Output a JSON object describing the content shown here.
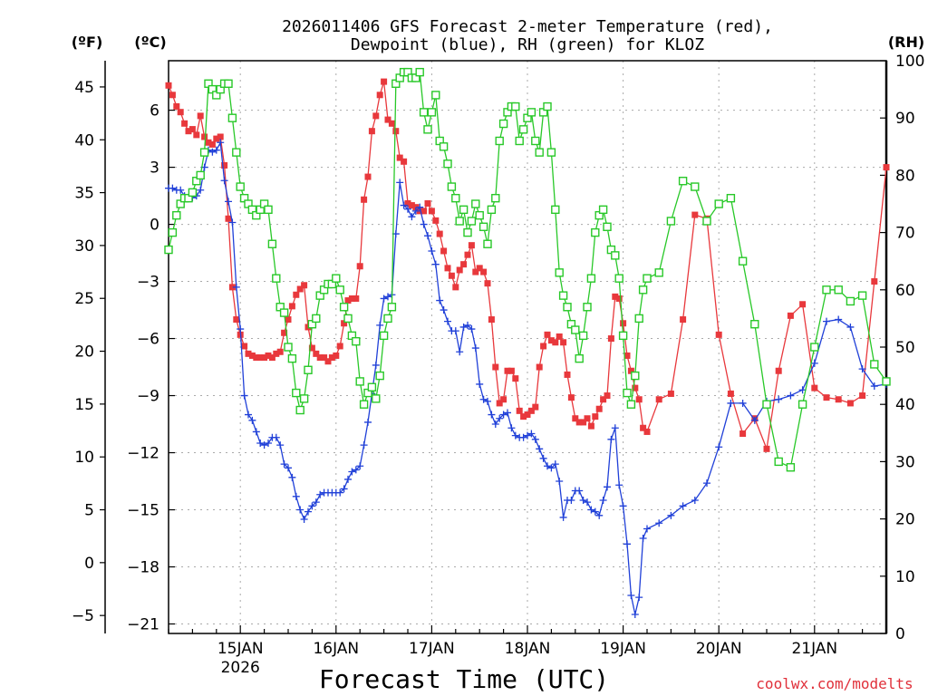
{
  "chart_data": {
    "type": "line",
    "title_line1": "2026011406 GFS Forecast 2-meter Temperature (red),",
    "title_line2": "Dewpoint (blue), RH (green) for KLOZ",
    "xlabel": "Forecast Time (UTC)",
    "credit": "coolwx.com/modelts",
    "unit_left_f": "(ºF)",
    "unit_left_c": "(ºC)",
    "unit_right": "(RH)",
    "x_range_hours": [
      0,
      180
    ],
    "x_ticks": [
      {
        "label": "15JAN",
        "hour": 18,
        "sub": "2026"
      },
      {
        "label": "16JAN",
        "hour": 42,
        "sub": ""
      },
      {
        "label": "17JAN",
        "hour": 66,
        "sub": ""
      },
      {
        "label": "18JAN",
        "hour": 90,
        "sub": ""
      },
      {
        "label": "19JAN",
        "hour": 114,
        "sub": ""
      },
      {
        "label": "20JAN",
        "hour": 138,
        "sub": ""
      },
      {
        "label": "21JAN",
        "hour": 162,
        "sub": ""
      }
    ],
    "yc_range": [
      -21.5,
      8.6
    ],
    "yc_ticks": [
      -21,
      -18,
      -15,
      -12,
      -9,
      -6,
      -3,
      0,
      3,
      6
    ],
    "yc_tick_labels": [
      "−21",
      "−18",
      "−15",
      "−12",
      "−9",
      "−6",
      "−3",
      "0",
      "3",
      "6"
    ],
    "yf_ticks": [
      -5,
      0,
      5,
      10,
      15,
      20,
      25,
      30,
      35,
      40,
      45
    ],
    "yf_tick_labels": [
      "−5",
      "0",
      "5",
      "10",
      "15",
      "20",
      "25",
      "30",
      "35",
      "40",
      "45"
    ],
    "rh_range": [
      0,
      100
    ],
    "rh_ticks": [
      0,
      10,
      20,
      30,
      40,
      50,
      60,
      70,
      80,
      90,
      100
    ],
    "rh_tick_labels": [
      "0",
      "10",
      "20",
      "30",
      "40",
      "50",
      "60",
      "70",
      "80",
      "90",
      "100"
    ],
    "series": [
      {
        "name": "Temperature",
        "axis": "celsius",
        "color": "#e8383c",
        "marker": "filled-square",
        "hours": [
          0,
          1,
          2,
          3,
          4,
          5,
          6,
          7,
          8,
          9,
          10,
          11,
          12,
          13,
          14,
          15,
          16,
          17,
          18,
          19,
          20,
          21,
          22,
          23,
          24,
          25,
          26,
          27,
          28,
          29,
          30,
          31,
          32,
          33,
          34,
          35,
          36,
          37,
          38,
          39,
          40,
          41,
          42,
          43,
          44,
          45,
          46,
          47,
          48,
          49,
          50,
          51,
          52,
          53,
          54,
          55,
          56,
          57,
          58,
          59,
          60,
          61,
          62,
          63,
          64,
          65,
          66,
          67,
          68,
          69,
          70,
          71,
          72,
          73,
          74,
          75,
          76,
          77,
          78,
          79,
          80,
          81,
          82,
          83,
          84,
          85,
          86,
          87,
          88,
          89,
          90,
          91,
          92,
          93,
          94,
          95,
          96,
          97,
          98,
          99,
          100,
          101,
          102,
          103,
          104,
          105,
          106,
          107,
          108,
          109,
          110,
          111,
          112,
          113,
          114,
          115,
          116,
          117,
          118,
          119,
          120,
          123,
          126,
          129,
          132,
          135,
          138,
          141,
          144,
          147,
          150,
          153,
          156,
          159,
          162,
          165,
          168,
          171,
          174,
          177,
          180
        ],
        "values": [
          7.3,
          6.8,
          6.2,
          5.9,
          5.3,
          4.9,
          5.0,
          4.7,
          5.7,
          4.6,
          4.3,
          4.2,
          4.5,
          4.6,
          3.1,
          0.3,
          -3.3,
          -5.0,
          -5.8,
          -6.4,
          -6.8,
          -6.9,
          -7.0,
          -7.0,
          -7.0,
          -6.9,
          -7.0,
          -6.8,
          -6.7,
          -5.7,
          -5.0,
          -4.3,
          -3.7,
          -3.4,
          -3.2,
          -5.4,
          -6.5,
          -6.8,
          -7.0,
          -7.0,
          -7.2,
          -7.0,
          -6.9,
          -6.4,
          -5.2,
          -4.0,
          -3.9,
          -3.9,
          -2.2,
          1.3,
          2.5,
          4.9,
          5.7,
          6.8,
          7.5,
          5.5,
          5.3,
          4.9,
          3.5,
          3.3,
          1.1,
          1.0,
          0.9,
          0.7,
          0.7,
          1.1,
          0.7,
          0.2,
          -0.5,
          -1.4,
          -2.3,
          -2.7,
          -3.3,
          -2.4,
          -2.1,
          -1.6,
          -1.1,
          -2.5,
          -2.3,
          -2.5,
          -3.1,
          -5.0,
          -7.5,
          -9.4,
          -9.2,
          -7.7,
          -7.7,
          -8.1,
          -9.8,
          -10.1,
          -10.0,
          -9.8,
          -9.6,
          -7.5,
          -6.4,
          -5.8,
          -6.1,
          -6.2,
          -5.9,
          -6.2,
          -7.9,
          -9.1,
          -10.2,
          -10.4,
          -10.4,
          -10.2,
          -10.6,
          -10.1,
          -9.7,
          -9.2,
          -9.0,
          -6.0,
          -3.8,
          -3.9,
          -5.2,
          -6.9,
          -7.7,
          -8.6,
          -9.2,
          -10.7,
          -10.9,
          -9.2,
          -8.9,
          -5.0,
          0.5,
          0.3,
          -5.8,
          -8.9,
          -11.0,
          -10.2,
          -11.8,
          -7.7,
          -4.8,
          -4.2,
          -8.6,
          -9.1,
          -9.2,
          -9.4,
          -9.0,
          -3.0,
          3.0
        ]
      },
      {
        "name": "Dewpoint",
        "axis": "celsius",
        "color": "#2040d8",
        "marker": "plus",
        "hours": [
          0,
          1,
          2,
          3,
          4,
          5,
          6,
          7,
          8,
          9,
          10,
          11,
          12,
          13,
          14,
          15,
          16,
          17,
          18,
          19,
          20,
          21,
          22,
          23,
          24,
          25,
          26,
          27,
          28,
          29,
          30,
          31,
          32,
          33,
          34,
          35,
          36,
          37,
          38,
          39,
          40,
          41,
          42,
          43,
          44,
          45,
          46,
          47,
          48,
          49,
          50,
          51,
          52,
          53,
          54,
          55,
          56,
          57,
          58,
          59,
          60,
          61,
          62,
          63,
          64,
          65,
          66,
          67,
          68,
          69,
          70,
          71,
          72,
          73,
          74,
          75,
          76,
          77,
          78,
          79,
          80,
          81,
          82,
          83,
          84,
          85,
          86,
          87,
          88,
          89,
          90,
          91,
          92,
          93,
          94,
          95,
          96,
          97,
          98,
          99,
          100,
          101,
          102,
          103,
          104,
          105,
          106,
          107,
          108,
          109,
          110,
          111,
          112,
          113,
          114,
          115,
          116,
          117,
          118,
          119,
          120,
          123,
          126,
          129,
          132,
          135,
          138,
          141,
          144,
          147,
          150,
          153,
          156,
          159,
          162,
          165,
          168,
          171,
          174,
          177,
          180
        ],
        "values": [
          1.9,
          1.9,
          1.8,
          1.8,
          1.5,
          1.4,
          1.4,
          1.5,
          1.8,
          3.0,
          3.9,
          3.8,
          3.9,
          4.3,
          2.3,
          1.2,
          0.1,
          -3.3,
          -5.5,
          -9.0,
          -10.0,
          -10.3,
          -10.9,
          -11.5,
          -11.6,
          -11.5,
          -11.2,
          -11.2,
          -11.6,
          -12.6,
          -12.8,
          -13.3,
          -14.3,
          -15.0,
          -15.5,
          -15.1,
          -14.8,
          -14.6,
          -14.2,
          -14.1,
          -14.1,
          -14.1,
          -14.1,
          -14.1,
          -13.9,
          -13.4,
          -13.0,
          -12.9,
          -12.7,
          -11.6,
          -10.4,
          -8.9,
          -7.4,
          -5.3,
          -3.9,
          -3.8,
          -3.7,
          -0.5,
          2.2,
          1.0,
          0.8,
          0.4,
          0.7,
          0.9,
          0.0,
          -0.6,
          -1.4,
          -2.1,
          -4.0,
          -4.5,
          -5.1,
          -5.6,
          -5.6,
          -6.7,
          -5.4,
          -5.3,
          -5.5,
          -6.5,
          -8.4,
          -9.2,
          -9.3,
          -10.0,
          -10.5,
          -10.2,
          -10.0,
          -9.9,
          -10.7,
          -11.1,
          -11.2,
          -11.2,
          -11.1,
          -11.0,
          -11.3,
          -11.8,
          -12.3,
          -12.7,
          -12.8,
          -12.6,
          -13.5,
          -15.4,
          -14.5,
          -14.5,
          -14.0,
          -14.0,
          -14.5,
          -14.6,
          -15.0,
          -15.1,
          -15.3,
          -14.5,
          -13.8,
          -11.3,
          -10.7,
          -13.7,
          -14.8,
          -16.8,
          -19.5,
          -20.5,
          -19.6,
          -16.5,
          -16.0,
          -15.7,
          -15.3,
          -14.8,
          -14.5,
          -13.6,
          -11.7,
          -9.4,
          -9.4,
          -10.3,
          -9.3,
          -9.2,
          -9.0,
          -8.7,
          -7.3,
          -5.1,
          -5.0,
          -5.4,
          -7.6,
          -8.5,
          -8.4
        ]
      },
      {
        "name": "RH",
        "axis": "rh",
        "color": "#28c828",
        "marker": "open-square",
        "hours": [
          0,
          1,
          2,
          3,
          4,
          5,
          6,
          7,
          8,
          9,
          10,
          11,
          12,
          13,
          14,
          15,
          16,
          17,
          18,
          19,
          20,
          21,
          22,
          23,
          24,
          25,
          26,
          27,
          28,
          29,
          30,
          31,
          32,
          33,
          34,
          35,
          36,
          37,
          38,
          39,
          40,
          41,
          42,
          43,
          44,
          45,
          46,
          47,
          48,
          49,
          50,
          51,
          52,
          53,
          54,
          55,
          56,
          57,
          58,
          59,
          60,
          61,
          62,
          63,
          64,
          65,
          66,
          67,
          68,
          69,
          70,
          71,
          72,
          73,
          74,
          75,
          76,
          77,
          78,
          79,
          80,
          81,
          82,
          83,
          84,
          85,
          86,
          87,
          88,
          89,
          90,
          91,
          92,
          93,
          94,
          95,
          96,
          97,
          98,
          99,
          100,
          101,
          102,
          103,
          104,
          105,
          106,
          107,
          108,
          109,
          110,
          111,
          112,
          113,
          114,
          115,
          116,
          117,
          118,
          119,
          120,
          123,
          126,
          129,
          132,
          135,
          138,
          141,
          144,
          147,
          150,
          153,
          156,
          159,
          162,
          165,
          168,
          171,
          174,
          177,
          180
        ],
        "values": [
          67,
          70,
          73,
          75,
          76,
          76,
          77,
          79,
          80,
          84,
          96,
          95,
          94,
          95,
          96,
          96,
          90,
          84,
          78,
          76,
          75,
          74,
          73,
          74,
          75,
          74,
          68,
          62,
          57,
          56,
          50,
          48,
          42,
          39,
          41,
          46,
          54,
          55,
          59,
          60,
          61,
          61,
          62,
          60,
          57,
          55,
          52,
          51,
          44,
          40,
          42,
          43,
          41,
          45,
          52,
          55,
          57,
          96,
          97,
          98,
          98,
          97,
          97,
          98,
          91,
          88,
          91,
          94,
          86,
          85,
          82,
          78,
          76,
          72,
          74,
          70,
          72,
          75,
          73,
          71,
          68,
          74,
          76,
          86,
          89,
          91,
          92,
          92,
          86,
          88,
          90,
          91,
          86,
          84,
          91,
          92,
          84,
          74,
          63,
          59,
          57,
          54,
          53,
          48,
          52,
          57,
          62,
          70,
          73,
          74,
          71,
          67,
          66,
          62,
          52,
          42,
          40,
          45,
          55,
          60,
          62,
          63,
          72,
          79,
          78,
          72,
          75,
          76,
          65,
          54,
          40,
          30,
          29,
          40,
          50,
          60,
          60,
          58,
          59,
          47,
          44
        ]
      }
    ]
  }
}
